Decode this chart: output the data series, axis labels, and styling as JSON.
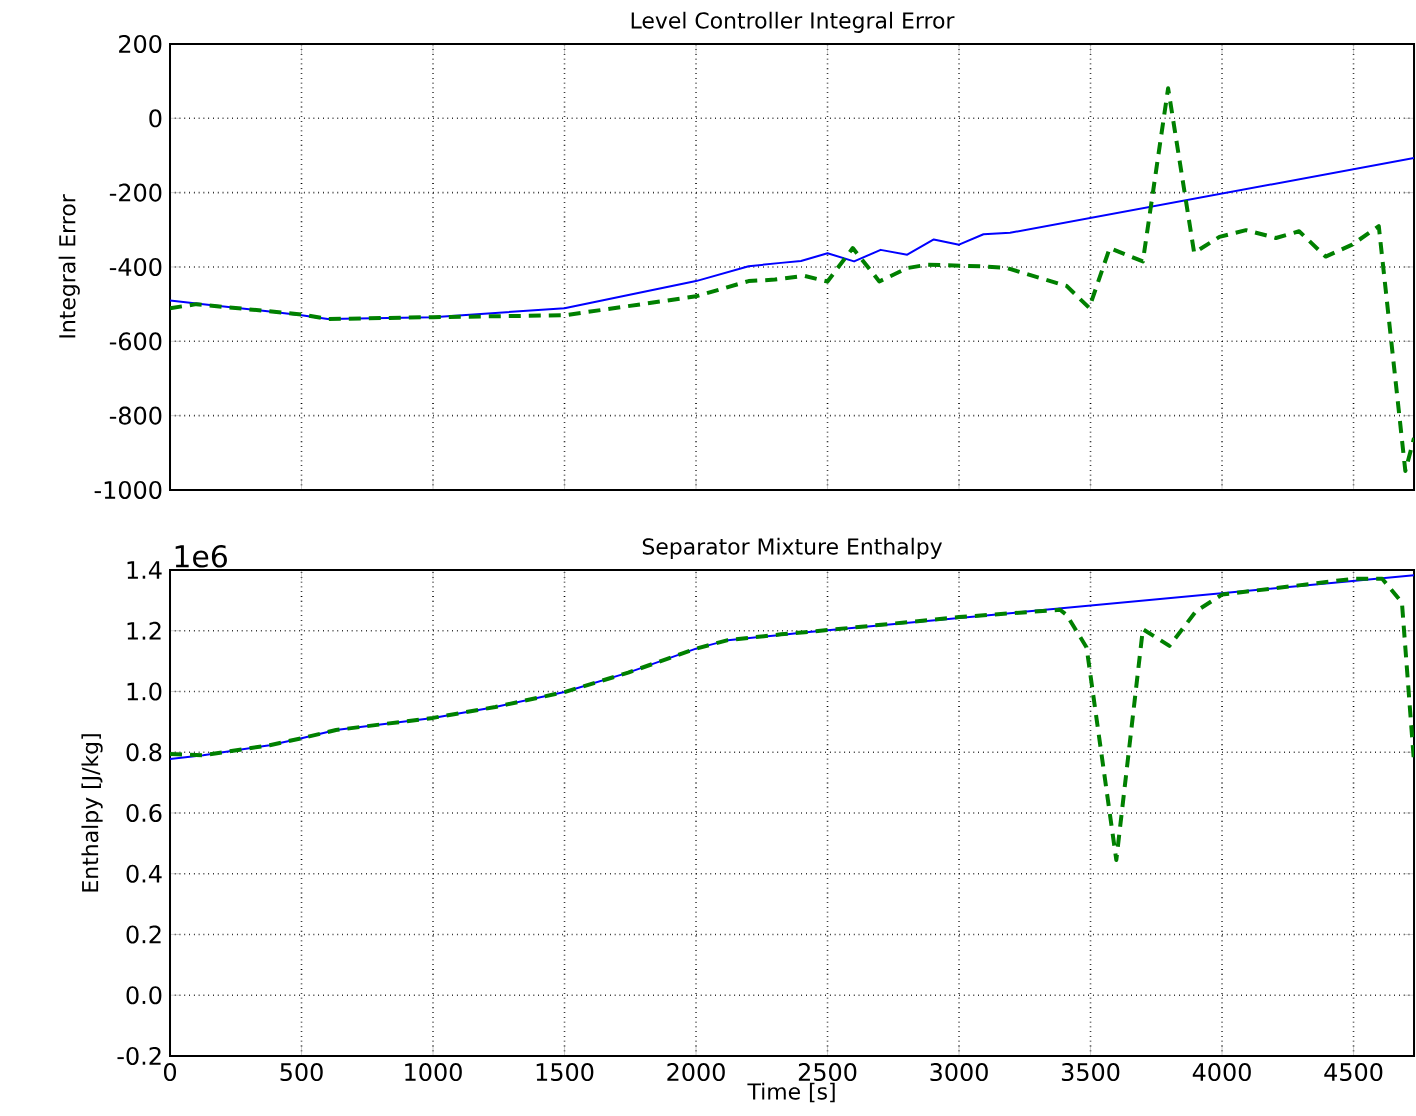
{
  "chart_data": [
    {
      "type": "line",
      "title": "Level Controller Integral Error",
      "ylabel": "Integral Error",
      "series": [
        {
          "color": "#0000ff",
          "line_style": "solid",
          "x": [
            0,
            126,
            379,
            500,
            600,
            1000,
            1500,
            2000,
            2200,
            2323,
            2399,
            2500,
            2601,
            2702,
            2803,
            2904,
            3000,
            3093,
            3194,
            4730
          ],
          "values": [
            -490,
            -500,
            -520,
            -530,
            -540,
            -535,
            -511,
            -438,
            -398,
            -389,
            -384,
            -363,
            -385,
            -354,
            -367,
            -326,
            -340,
            -312,
            -308,
            -107
          ]
        },
        {
          "color": "#008000",
          "line_style": "dashed",
          "x": [
            0,
            100,
            500,
            600,
            1000,
            1500,
            2000,
            2200,
            2300,
            2412,
            2500,
            2596,
            2697,
            2803,
            2879,
            3081,
            3182,
            3409,
            3495,
            3573,
            3699,
            3795,
            3894,
            3990,
            4091,
            4205,
            4293,
            4394,
            4495,
            4596,
            4697,
            4730
          ],
          "values": [
            -511,
            -500,
            -528,
            -540,
            -535,
            -530,
            -479,
            -438,
            -434,
            -424,
            -439,
            -349,
            -439,
            -403,
            -394,
            -398,
            -403,
            -451,
            -510,
            -349,
            -385,
            81,
            -362,
            -319,
            -301,
            -322,
            -304,
            -372,
            -340,
            -290,
            -949,
            -860
          ]
        }
      ],
      "xlim": [
        0,
        4730
      ],
      "ylim": [
        -1000,
        200
      ],
      "xticks": [
        0,
        500,
        1000,
        1500,
        2000,
        2500,
        3000,
        3500,
        4000,
        4500
      ],
      "yticks": [
        -1000,
        -800,
        -600,
        -400,
        -200,
        0,
        200
      ],
      "grid": true,
      "tick_labels": "y"
    },
    {
      "type": "line",
      "title": "Separator Mixture Enthalpy",
      "xlabel": "Time [s]",
      "ylabel": "Enthalpy [J/kg]",
      "annotations": [
        "1e6"
      ],
      "series": [
        {
          "color": "#0000ff",
          "line_style": "solid",
          "x": [
            0,
            126,
            379,
            500,
            631,
            1000,
            1237,
            1500,
            1742,
            2000,
            2121,
            2323,
            2399,
            4730
          ],
          "values": [
            0.778,
            0.79,
            0.823,
            0.846,
            0.873,
            0.913,
            0.949,
            0.998,
            1.062,
            1.141,
            1.169,
            1.186,
            1.193,
            1.383
          ]
        },
        {
          "color": "#008000",
          "line_style": "dashed",
          "x": [
            0,
            126,
            379,
            500,
            631,
            1000,
            1237,
            1500,
            1742,
            2000,
            2121,
            2323,
            2500,
            3000,
            3384,
            3409,
            3485,
            3598,
            3699,
            3800,
            3901,
            4000,
            4500,
            4609,
            4684,
            4730
          ],
          "values": [
            0.794,
            0.79,
            0.823,
            0.846,
            0.873,
            0.913,
            0.949,
            0.998,
            1.062,
            1.141,
            1.169,
            1.188,
            1.202,
            1.245,
            1.269,
            1.252,
            1.145,
            0.445,
            1.205,
            1.15,
            1.264,
            1.319,
            1.371,
            1.371,
            1.293,
            0.766
          ]
        }
      ],
      "xlim": [
        0,
        4730
      ],
      "ylim": [
        -0.2,
        1.4
      ],
      "xticks": [
        0,
        500,
        1000,
        1500,
        2000,
        2500,
        3000,
        3500,
        4000,
        4500
      ],
      "yticks": [
        -0.2,
        {
          "value": 0,
          "label": "0.0"
        },
        0.2,
        0.4,
        0.6,
        0.8,
        {
          "value": 1.0,
          "label": "1.0"
        },
        1.2,
        1.4
      ],
      "grid": true
    }
  ]
}
